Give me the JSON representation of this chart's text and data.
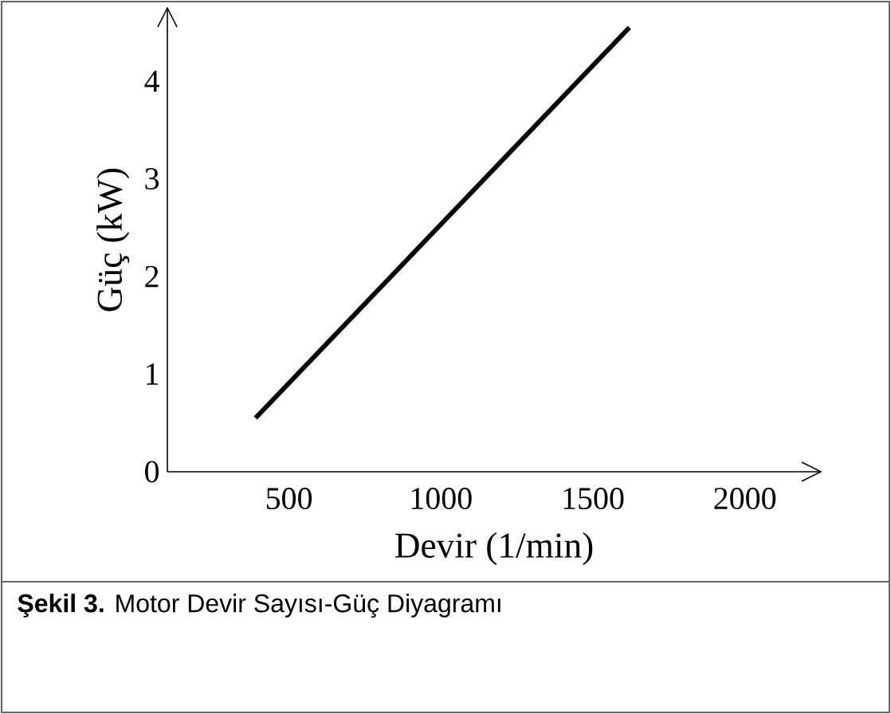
{
  "chart_data": {
    "type": "line",
    "xlabel": "Devir (1/min)",
    "ylabel": "Güç (kW)",
    "annotations": [
      "**Şekil 3.** Motor Devir Sayısı-Güç Diyagramı"
    ],
    "x": [
      390,
      1620
    ],
    "series": [
      {
        "color": "#000000",
        "values": [
          0.55,
          4.55
        ]
      }
    ],
    "xlim": [
      100,
      2250
    ],
    "ylim": [
      0,
      4.75
    ],
    "xticks": [
      500,
      1000,
      1500,
      2000
    ],
    "yticks": [
      0,
      1,
      2,
      3,
      4
    ],
    "grid": false,
    "marker": "none",
    "line_style": "solid"
  }
}
